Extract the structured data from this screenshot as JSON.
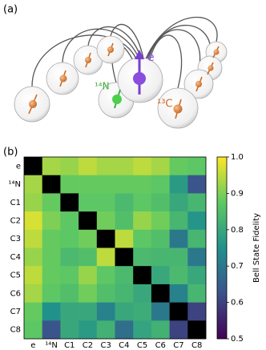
{
  "panel_a": {
    "label": "(a)",
    "electron": "e",
    "nitrogen": "¹⁴N",
    "carbon": "¹³C"
  },
  "panel_b": {
    "label": "(b)"
  },
  "chart_data": {
    "type": "heatmap",
    "categories": [
      "e",
      "¹⁴N",
      "C1",
      "C2",
      "C3",
      "C4",
      "C5",
      "C6",
      "C7",
      "C8"
    ],
    "values": [
      [
        null,
        0.93,
        0.92,
        0.95,
        0.93,
        0.93,
        0.95,
        0.93,
        0.88,
        0.87
      ],
      [
        0.93,
        null,
        0.88,
        0.88,
        0.88,
        0.88,
        0.88,
        0.87,
        0.77,
        0.63
      ],
      [
        0.92,
        0.88,
        null,
        0.87,
        0.87,
        0.84,
        0.87,
        0.85,
        0.8,
        0.83
      ],
      [
        0.97,
        0.9,
        0.87,
        null,
        0.89,
        0.85,
        0.92,
        0.89,
        0.83,
        0.76
      ],
      [
        0.95,
        0.88,
        0.87,
        0.89,
        null,
        0.95,
        0.87,
        0.85,
        0.7,
        0.83
      ],
      [
        0.92,
        0.88,
        0.84,
        0.85,
        0.95,
        null,
        0.84,
        0.83,
        0.83,
        0.7
      ],
      [
        0.95,
        0.88,
        0.87,
        0.92,
        0.87,
        0.84,
        null,
        0.8,
        0.84,
        0.8
      ],
      [
        0.93,
        0.87,
        0.85,
        0.89,
        0.85,
        0.83,
        0.8,
        null,
        0.72,
        0.83
      ],
      [
        0.88,
        0.75,
        0.8,
        0.8,
        0.72,
        0.8,
        0.81,
        0.7,
        null,
        0.6
      ],
      [
        0.87,
        0.63,
        0.8,
        0.77,
        0.82,
        0.68,
        0.79,
        0.82,
        0.6,
        null
      ]
    ],
    "colormap": "viridis",
    "missing_color": "#000000",
    "zlim": [
      0.5,
      1.0
    ],
    "zticks": [
      0.5,
      0.6,
      0.7,
      0.8,
      0.9,
      {
        "value": 1,
        "label": "1.0"
      }
    ],
    "colorbar_label": "Bell State Fidelity"
  }
}
